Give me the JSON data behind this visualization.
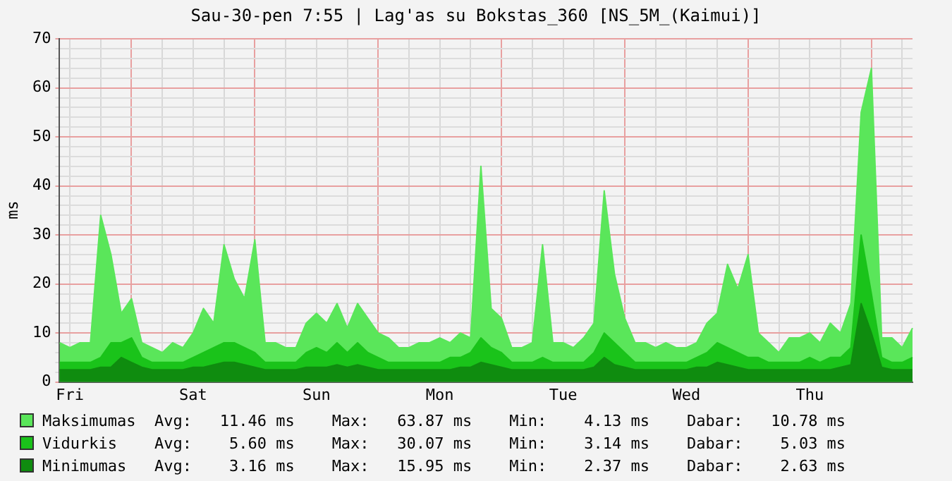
{
  "chart_data": {
    "type": "area",
    "title": "Sau-30-pen 7:55 | Lag'as su Bokstas_360 [NS_5M_(Kaimui)]",
    "ylabel": "ms",
    "categories": [
      null,
      "Fri",
      null,
      null,
      null,
      null,
      null,
      null,
      null,
      null,
      null,
      null,
      null,
      "Sat",
      null,
      null,
      null,
      null,
      null,
      null,
      null,
      null,
      null,
      null,
      null,
      "Sun",
      null,
      null,
      null,
      null,
      null,
      null,
      null,
      null,
      null,
      null,
      null,
      "Mon",
      null,
      null,
      null,
      null,
      null,
      null,
      null,
      null,
      null,
      null,
      null,
      "Tue",
      null,
      null,
      null,
      null,
      null,
      null,
      null,
      null,
      null,
      null,
      null,
      "Wed",
      null,
      null,
      null,
      null,
      null,
      null,
      null,
      null,
      null,
      null,
      null,
      "Thu",
      null,
      null,
      null,
      null,
      null,
      null,
      null,
      null,
      null,
      null
    ],
    "series": [
      {
        "name": "Maksimumas",
        "color": "#5ae65a",
        "values": [
          8,
          7,
          8,
          8,
          34,
          26,
          14,
          17,
          8,
          7,
          6,
          8,
          7,
          10,
          15,
          12,
          28,
          21,
          17,
          29,
          8,
          8,
          7,
          7,
          12,
          14,
          12,
          16,
          11,
          16,
          13,
          10,
          9,
          7,
          7,
          8,
          8,
          9,
          8,
          10,
          9,
          44,
          15,
          13,
          7,
          7,
          8,
          28,
          8,
          8,
          7,
          9,
          12,
          39,
          22,
          13,
          8,
          8,
          7,
          8,
          7,
          7,
          8,
          12,
          14,
          24,
          19,
          26,
          10,
          8,
          6,
          9,
          9,
          10,
          8,
          12,
          10,
          16,
          55,
          64,
          9,
          9,
          7,
          11
        ]
      },
      {
        "name": "Vidurkis",
        "color": "#1ac31a",
        "values": [
          4,
          4,
          4,
          4,
          5,
          8,
          8,
          9,
          5,
          4,
          4,
          4,
          4,
          5,
          6,
          7,
          8,
          8,
          7,
          6,
          4,
          4,
          4,
          4,
          6,
          7,
          6,
          8,
          6,
          8,
          6,
          5,
          4,
          4,
          4,
          4,
          4,
          4,
          5,
          5,
          6,
          9,
          7,
          6,
          4,
          4,
          4,
          5,
          4,
          4,
          4,
          4,
          6,
          10,
          8,
          6,
          4,
          4,
          4,
          4,
          4,
          4,
          5,
          6,
          8,
          7,
          6,
          5,
          5,
          4,
          4,
          4,
          4,
          5,
          4,
          5,
          5,
          7,
          30,
          18,
          5,
          4,
          4,
          5
        ]
      },
      {
        "name": "Minimumas",
        "color": "#0f8c0f",
        "values": [
          2.5,
          2.5,
          2.5,
          2.5,
          3,
          3,
          5,
          4,
          3,
          2.5,
          2.5,
          2.5,
          2.5,
          3,
          3,
          3.5,
          4,
          4,
          3.5,
          3,
          2.5,
          2.5,
          2.5,
          2.5,
          3,
          3,
          3,
          3.5,
          3,
          3.5,
          3,
          2.5,
          2.5,
          2.5,
          2.5,
          2.5,
          2.5,
          2.5,
          2.5,
          3,
          3,
          4,
          3.5,
          3,
          2.5,
          2.5,
          2.5,
          2.5,
          2.5,
          2.5,
          2.5,
          2.5,
          3,
          5,
          3.5,
          3,
          2.5,
          2.5,
          2.5,
          2.5,
          2.5,
          2.5,
          3,
          3,
          4,
          3.5,
          3,
          2.5,
          2.5,
          2.5,
          2.5,
          2.5,
          2.5,
          2.5,
          2.5,
          2.5,
          3,
          3.5,
          16,
          10,
          3,
          2.5,
          2.5,
          2.5
        ]
      }
    ],
    "ylim": [
      0,
      70
    ],
    "yticks": [
      0,
      {
        "value": 2,
        "label": null
      },
      {
        "value": 4,
        "label": null
      },
      {
        "value": 6,
        "label": null
      },
      {
        "value": 8,
        "label": null
      },
      10,
      {
        "value": 12,
        "label": null
      },
      {
        "value": 14,
        "label": null
      },
      {
        "value": 16,
        "label": null
      },
      {
        "value": 18,
        "label": null
      },
      20,
      {
        "value": 22,
        "label": null
      },
      {
        "value": 24,
        "label": null
      },
      {
        "value": 26,
        "label": null
      },
      {
        "value": 28,
        "label": null
      },
      30,
      {
        "value": 32,
        "label": null
      },
      {
        "value": 34,
        "label": null
      },
      {
        "value": 36,
        "label": null
      },
      {
        "value": 38,
        "label": null
      },
      40,
      {
        "value": 42,
        "label": null
      },
      {
        "value": 44,
        "label": null
      },
      {
        "value": 46,
        "label": null
      },
      {
        "value": 48,
        "label": null
      },
      50,
      {
        "value": 52,
        "label": null
      },
      {
        "value": 54,
        "label": null
      },
      {
        "value": 56,
        "label": null
      },
      {
        "value": 58,
        "label": null
      },
      60,
      {
        "value": 62,
        "label": null
      },
      {
        "value": 64,
        "label": null
      },
      {
        "value": 66,
        "label": null
      },
      {
        "value": 68,
        "label": null
      },
      70
    ],
    "grid": true,
    "legend": "bottom",
    "annotations": [
      "Avg:   11.46 ms    Max:   63.87 ms    Min:    4.13 ms    Dabar:   10.78 ms",
      "Avg:    5.60 ms    Max:   30.07 ms    Min:    3.14 ms    Dabar:    5.03 ms",
      "Avg:    3.16 ms    Max:   15.95 ms    Min:    2.37 ms    Dabar:    2.63 ms"
    ]
  }
}
